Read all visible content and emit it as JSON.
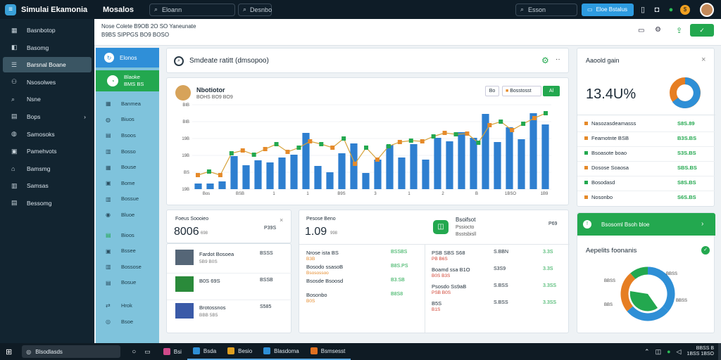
{
  "app": {
    "name": "Simulai Ekamonia",
    "module": "Mosalos"
  },
  "topbar": {
    "search_placeholder": "Eloann",
    "search2": "Desnbo",
    "search3": "Esson",
    "action_button": "Eloe Bstalus"
  },
  "sidebar": {
    "items": [
      {
        "icon": "grid-icon",
        "label": "Basnbotop"
      },
      {
        "icon": "box-icon",
        "label": "Basomg"
      },
      {
        "icon": "list-icon",
        "label": "Barsnal Boane",
        "active": true
      },
      {
        "icon": "users-icon",
        "label": "Nsosolwes"
      },
      {
        "icon": "search-icon",
        "label": "Nsne"
      },
      {
        "icon": "folder-icon",
        "label": "Bops"
      },
      {
        "icon": "globe-icon",
        "label": "Samosoks"
      },
      {
        "icon": "cart-icon",
        "label": "Pamehvots"
      },
      {
        "icon": "home-icon",
        "label": "Bamsmg"
      },
      {
        "icon": "doc-icon",
        "label": "Samsas"
      },
      {
        "icon": "file-icon",
        "label": "Bessomg"
      }
    ]
  },
  "subbar": {
    "line1": "Nose  Colete  B9OB  2O  SO  Yaneunate",
    "line2": "B9BS  SIPPGS  BO9  BOSO",
    "save_label": "✓"
  },
  "panel2": {
    "head": "Elonos",
    "green_line1": "Blaoke",
    "green_line2": "BMS BS",
    "items": [
      "Banmea",
      "Biuos",
      "Bsoos",
      "Bosso",
      "Bouse",
      "Bome",
      "Bossue",
      "Bluoe",
      "Bioos",
      "Bssee",
      "Bossose",
      "Bosue",
      "Hrok",
      "Bsoe"
    ]
  },
  "chart_header": {
    "title": "Smdeate ratitt (dmsopoo)"
  },
  "chart_card": {
    "title": "Nbotiotor",
    "subtitle": "BOHS  BO9  BO9",
    "seg_a": "Bo",
    "seg_b": "Bosstosst",
    "seg_c": "Al"
  },
  "chart_data": {
    "type": "bar",
    "y_ticks": [
      "19B",
      "BS",
      "19B",
      "19B",
      "BIB",
      "BIB"
    ],
    "x_ticks": [
      "Bos",
      "BSB",
      "1",
      "1",
      "B9S",
      "3",
      "1",
      "2",
      "B",
      "1BSO",
      "1B9"
    ],
    "bar_values": [
      8,
      8,
      11,
      47,
      34,
      41,
      38,
      45,
      49,
      80,
      33,
      24,
      51,
      65,
      23,
      42,
      63,
      45,
      64,
      42,
      73,
      68,
      81,
      73,
      107,
      67,
      88,
      71,
      108,
      92
    ],
    "line_values": [
      20,
      25,
      20,
      51,
      55,
      49,
      57,
      64,
      53,
      59,
      68,
      64,
      59,
      72,
      36,
      59,
      42,
      61,
      67,
      69,
      68,
      75,
      80,
      78,
      79,
      66,
      91,
      96,
      84,
      93,
      101,
      108
    ],
    "ylim": [
      0,
      120
    ],
    "bar_color": "#2e7fd0",
    "line_color": "#d6a23a"
  },
  "kpi1": {
    "title": "Foeus Soooieo",
    "value": "8006",
    "suffix": "698",
    "tag": "P39S"
  },
  "kpi2": {
    "title": "Pesose Beno",
    "value": "1.09",
    "suffix": "998"
  },
  "kpi3": {
    "title": "Bsoifsot",
    "subtitle": "Pssiocto",
    "extra": "Bsstsbisll",
    "tag": "P69"
  },
  "product_rows": [
    {
      "name": "Fardot Bosoea",
      "sub": "5B9 B0S",
      "badge": "BSSS"
    },
    {
      "name": "B0S 69S",
      "sub": "",
      "badge": "BSSB"
    },
    {
      "name": "Brotossnos",
      "sub": "BBB 5B5",
      "badge": "S585"
    }
  ],
  "mid_rows": [
    {
      "name": "Nrose ista  BS",
      "sub": "B3B",
      "val": "BSSBS"
    },
    {
      "name": "Bosodo ssasoB",
      "sub": "Bsosossoo",
      "val": "B8S.PS"
    },
    {
      "name": "Bsosde Bsoosd",
      "sub": "",
      "val": "B3.SB"
    },
    {
      "name": "Bosonbo",
      "sub": "B0S",
      "val": "B8S8"
    }
  ],
  "right_rows": [
    {
      "name": "PSB  SBS  S68",
      "sub": "PB  B6S",
      "a": "S.BBN",
      "b": "3.3S"
    },
    {
      "name": "Boamd ssa  B1O",
      "sub": "B0S  B3S",
      "a": "S3S9",
      "b": "3.3S"
    },
    {
      "name": "Psosdo  Ss9aB",
      "sub": "PSB  B0S",
      "a": "S.BSS",
      "b": "3.3SS"
    },
    {
      "name": "B5S",
      "sub": "B1S",
      "a": "S.BSS",
      "b": "3.3SS"
    }
  ],
  "stat_card": {
    "title": "Aaoold gain",
    "value": "13.4U%",
    "close": "×"
  },
  "stat_rows": [
    {
      "label": "Nasozasdeamasss",
      "value": "S8S.89",
      "color": "#e58a2a"
    },
    {
      "label": "Feamotnte  BSB",
      "value": "B3S.BS",
      "color": "#e58a2a"
    },
    {
      "label": "Bsoasote boao",
      "value": "S3S.BS",
      "color": "#23a84f"
    },
    {
      "label": "Dosose Soaosa",
      "value": "SBS.BS",
      "color": "#e58a2a"
    },
    {
      "label": "Bosodasd",
      "value": "S8S.BS",
      "color": "#23a84f"
    },
    {
      "label": "Nosonbo",
      "value": "S6S.BS",
      "color": "#e58a2a"
    }
  ],
  "pie_card": {
    "green_title": "Bsosoml  Bsoh bloe",
    "title": "Aepelits foonanis",
    "labels": [
      "BBSS",
      "BBSS",
      "BBSS",
      "BBS"
    ]
  },
  "taskbar": {
    "search": "Blsodlasds",
    "items": [
      "Bsi",
      "Bsda",
      "Besio",
      "Blasdoma",
      "Bsmsesst"
    ],
    "time": "BBSS  B",
    "date": "1BSS 1BSO"
  }
}
